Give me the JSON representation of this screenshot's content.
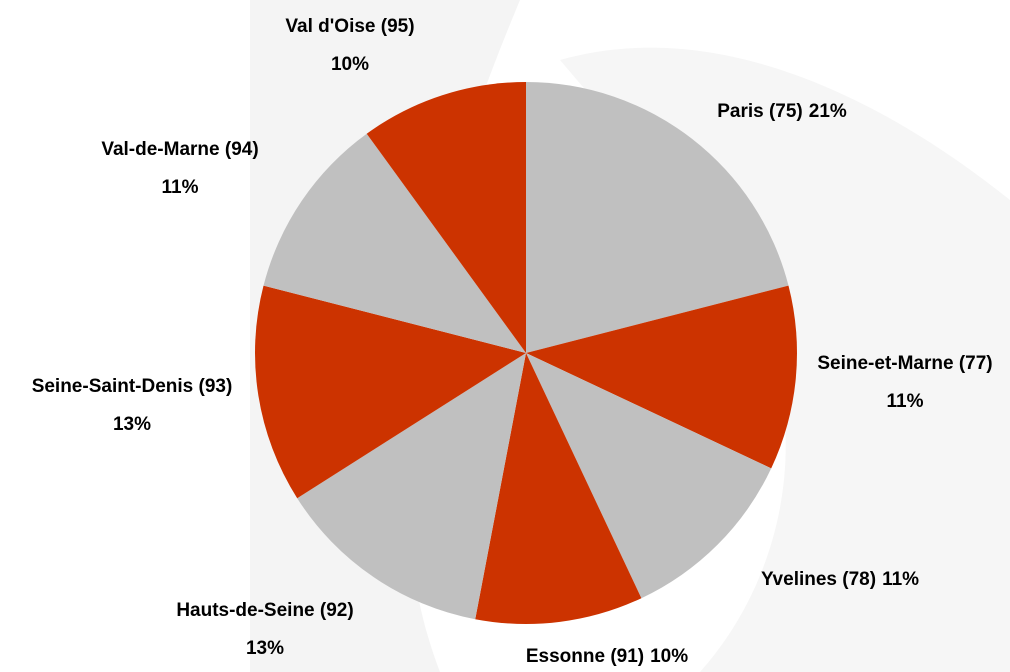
{
  "chart_data": {
    "type": "pie",
    "categories": [
      "Paris (75)",
      "Seine-et-Marne (77)",
      "Yvelines (78)",
      "Essonne (91)",
      "Hauts-de-Seine (92)",
      "Seine-Saint-Denis (93)",
      "Val-de-Marne (94)",
      "Val d'Oise (95)"
    ],
    "values": [
      21,
      11,
      11,
      10,
      13,
      13,
      11,
      10
    ],
    "value_labels": [
      "21%",
      "11%",
      "11%",
      "10%",
      "13%",
      "13%",
      "11%",
      "10%"
    ],
    "colors": [
      "#c0c0c0",
      "#cc3300",
      "#c0c0c0",
      "#cc3300",
      "#c0c0c0",
      "#cc3300",
      "#c0c0c0",
      "#cc3300"
    ]
  }
}
